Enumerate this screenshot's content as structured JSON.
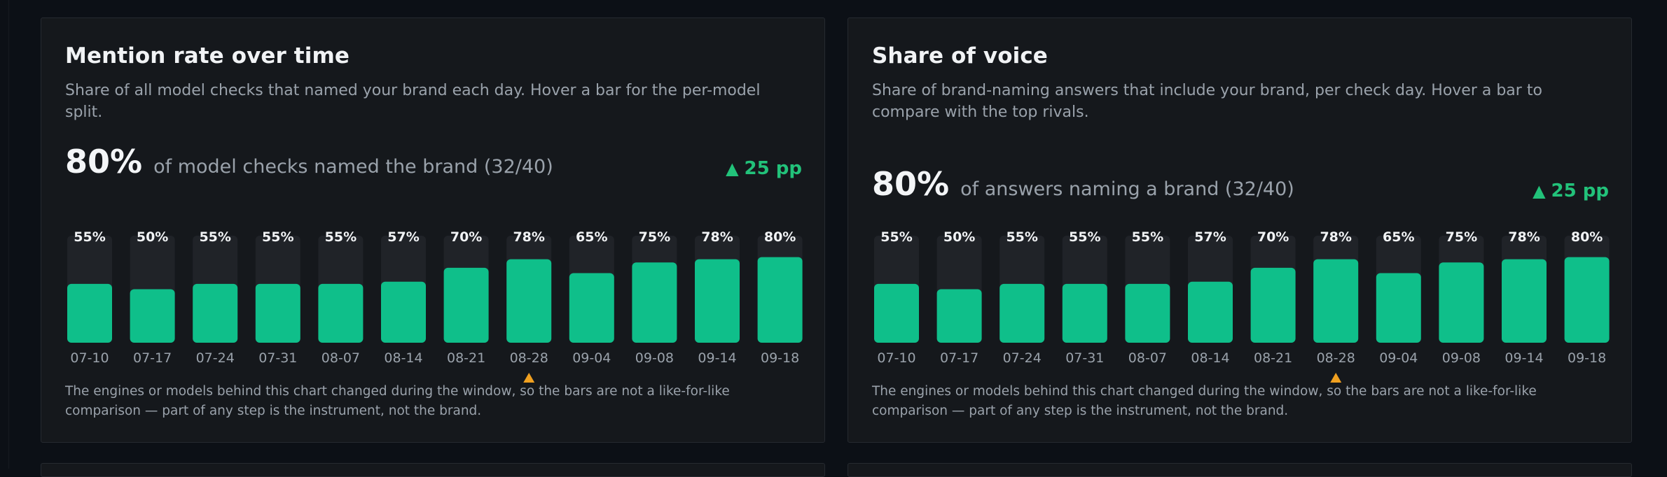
{
  "panels": [
    {
      "title": "Mention rate over time",
      "description": "Share of all model checks that named your brand each day. Hover a bar for the per-model split.",
      "kpi_value": "80%",
      "kpi_label": "of model checks named the brand (32/40)",
      "delta": "25 pp",
      "delta_icon": "triangle-up-icon",
      "footnote": "The engines or models behind this chart changed during the window, so the bars are not a like-for-like comparison — part of any step is the instrument, not the brand."
    },
    {
      "title": "Share of voice",
      "description": "Share of brand-naming answers that include your brand, per check day. Hover a bar to compare with the top rivals.",
      "kpi_value": "80%",
      "kpi_label": "of answers naming a brand (32/40)",
      "delta": "25 pp",
      "delta_icon": "triangle-up-icon",
      "footnote": "The engines or models behind this chart changed during the window, so the bars are not a like-for-like comparison — part of any step is the instrument, not the brand."
    }
  ],
  "colors": {
    "bar": "#0fbf8a",
    "track": "#202328",
    "positive": "#22c27a",
    "marker": "#f0a020"
  },
  "chart_data": [
    {
      "type": "bar",
      "categories": [
        "07-10",
        "07-17",
        "07-24",
        "07-31",
        "08-07",
        "08-14",
        "08-21",
        "08-28",
        "09-04",
        "09-08",
        "09-14",
        "09-18"
      ],
      "values": [
        55,
        50,
        55,
        55,
        55,
        57,
        70,
        78,
        65,
        75,
        78,
        80
      ],
      "value_labels": [
        "55%",
        "50%",
        "55%",
        "55%",
        "55%",
        "57%",
        "70%",
        "78%",
        "65%",
        "75%",
        "78%",
        "80%"
      ],
      "ylim": [
        0,
        100
      ],
      "marker_category": "08-28",
      "marker_icon": "triangle-up-icon"
    },
    {
      "type": "bar",
      "categories": [
        "07-10",
        "07-17",
        "07-24",
        "07-31",
        "08-07",
        "08-14",
        "08-21",
        "08-28",
        "09-04",
        "09-08",
        "09-14",
        "09-18"
      ],
      "values": [
        55,
        50,
        55,
        55,
        55,
        57,
        70,
        78,
        65,
        75,
        78,
        80
      ],
      "value_labels": [
        "55%",
        "50%",
        "55%",
        "55%",
        "55%",
        "57%",
        "70%",
        "78%",
        "65%",
        "75%",
        "78%",
        "80%"
      ],
      "ylim": [
        0,
        100
      ],
      "marker_category": "08-28",
      "marker_icon": "triangle-up-icon"
    }
  ]
}
